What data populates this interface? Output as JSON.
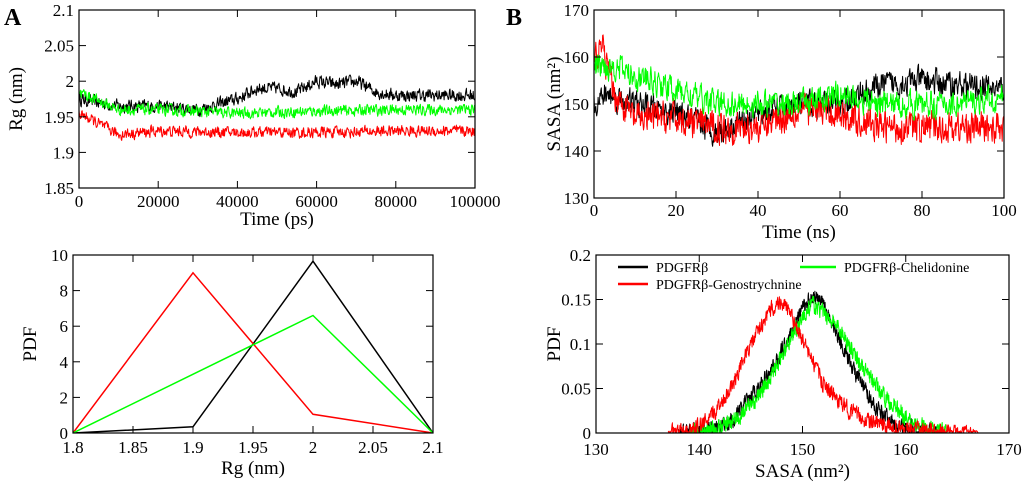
{
  "colors": {
    "PDGFRb": "#000000",
    "Genostrychnine": "#ff0000",
    "Chelidonine": "#00ff00"
  },
  "legend": {
    "entries": [
      {
        "key": "PDGFRb",
        "label": "PDGFRβ"
      },
      {
        "key": "Chelidonine",
        "label": "PDGFRβ-Chelidonine"
      },
      {
        "key": "Genostrychnine",
        "label": "PDGFRβ-Genostrychnine"
      }
    ]
  },
  "chart_data": [
    {
      "id": "A-top",
      "panel": "A",
      "type": "line",
      "xlabel": "Time (ps)",
      "ylabel": "Rg (nm)",
      "xlim": [
        0,
        100000
      ],
      "ylim": [
        1.85,
        2.1
      ],
      "xticks": [
        0,
        20000,
        40000,
        60000,
        80000,
        100000
      ],
      "yticks": [
        1.85,
        1.9,
        1.95,
        2,
        2.05,
        2.1
      ],
      "ytick_labels": [
        "1.85",
        "1.9",
        "1.95",
        "2",
        "2.05",
        "2.1"
      ],
      "series": [
        {
          "key": "PDGFRb",
          "name": "PDGFRβ",
          "x": [
            0,
            10000,
            20000,
            30000,
            40000,
            45000,
            50000,
            55000,
            60000,
            65000,
            70000,
            75000,
            80000,
            90000,
            100000
          ],
          "y": [
            1.975,
            1.965,
            1.965,
            1.96,
            1.975,
            1.99,
            1.99,
            1.985,
            2.0,
            1.995,
            2.0,
            1.985,
            1.98,
            1.98,
            1.98
          ],
          "noise": 0.008
        },
        {
          "key": "Genostrychnine",
          "name": "PDGFRβ-Genostrychnine",
          "x": [
            0,
            10000,
            20000,
            40000,
            60000,
            80000,
            100000
          ],
          "y": [
            1.955,
            1.925,
            1.93,
            1.928,
            1.928,
            1.93,
            1.93
          ],
          "noise": 0.007
        },
        {
          "key": "Chelidonine",
          "name": "PDGFRβ-Chelidonine",
          "x": [
            0,
            10000,
            20000,
            40000,
            60000,
            80000,
            100000
          ],
          "y": [
            1.985,
            1.96,
            1.96,
            1.955,
            1.958,
            1.96,
            1.96
          ],
          "noise": 0.007
        }
      ]
    },
    {
      "id": "A-bottom",
      "panel": "A",
      "type": "line",
      "xlabel": "Rg (nm)",
      "ylabel": "PDF",
      "xlim": [
        1.8,
        2.1
      ],
      "ylim": [
        0,
        10
      ],
      "xticks": [
        1.8,
        1.85,
        1.9,
        1.95,
        2,
        2.05,
        2.1
      ],
      "xtick_labels": [
        "1.8",
        "1.85",
        "1.9",
        "1.95",
        "2",
        "2.05",
        "2.1"
      ],
      "yticks": [
        0,
        2,
        4,
        6,
        8,
        10
      ],
      "series": [
        {
          "key": "PDGFRb",
          "name": "PDGFRβ",
          "x": [
            1.8,
            1.9,
            2.0,
            2.1
          ],
          "y": [
            0,
            0.35,
            9.65,
            0
          ]
        },
        {
          "key": "Genostrychnine",
          "name": "PDGFRβ-Genostrychnine",
          "x": [
            1.8,
            1.9,
            2.0,
            2.1
          ],
          "y": [
            0,
            9.0,
            1.05,
            0
          ]
        },
        {
          "key": "Chelidonine",
          "name": "PDGFRβ-Chelidonine",
          "x": [
            1.8,
            2.0,
            2.1
          ],
          "y": [
            0,
            6.6,
            0
          ]
        }
      ]
    },
    {
      "id": "B-top",
      "panel": "B",
      "type": "line",
      "xlabel": "Time (ns)",
      "ylabel": "SASA (nm²)",
      "xlim": [
        0,
        100
      ],
      "ylim": [
        130,
        170
      ],
      "xticks": [
        0,
        20,
        40,
        60,
        80,
        100
      ],
      "yticks": [
        130,
        140,
        150,
        160,
        170
      ],
      "series": [
        {
          "key": "PDGFRb",
          "name": "PDGFRβ",
          "x": [
            0,
            3,
            10,
            20,
            30,
            40,
            50,
            60,
            70,
            80,
            90,
            100
          ],
          "y": [
            150,
            152,
            150,
            148,
            144,
            148,
            150,
            150,
            154,
            155,
            154,
            153
          ],
          "noise": 2.5
        },
        {
          "key": "Genostrychnine",
          "name": "PDGFRβ-Genostrychnine",
          "x": [
            0,
            2,
            5,
            10,
            20,
            30,
            40,
            50,
            60,
            70,
            80,
            90,
            100
          ],
          "y": [
            160,
            162,
            152,
            147,
            147,
            145,
            145,
            149,
            148,
            145,
            145,
            145,
            145
          ],
          "noise": 3.0
        },
        {
          "key": "Chelidonine",
          "name": "PDGFRβ-Chelidonine",
          "x": [
            0,
            5,
            10,
            20,
            30,
            40,
            50,
            60,
            70,
            80,
            90,
            100
          ],
          "y": [
            158,
            158,
            156,
            153,
            150,
            150,
            150,
            152,
            150,
            150,
            150,
            151
          ],
          "noise": 2.5
        }
      ]
    },
    {
      "id": "B-bottom",
      "panel": "B",
      "type": "line",
      "xlabel": "SASA (nm²)",
      "ylabel": "PDF",
      "xlim": [
        130,
        170
      ],
      "ylim": [
        0,
        0.2
      ],
      "xticks": [
        130,
        140,
        150,
        160,
        170
      ],
      "yticks": [
        0,
        0.05,
        0.1,
        0.15,
        0.2
      ],
      "ytick_labels": [
        "0",
        "0.05",
        "0.1",
        "0.15",
        "0.2"
      ],
      "series": [
        {
          "key": "PDGFRb",
          "name": "PDGFRβ",
          "x": [
            138,
            141,
            143,
            145,
            147,
            149,
            150,
            151,
            152,
            153,
            155,
            157,
            159,
            161,
            163
          ],
          "y": [
            0,
            0.003,
            0.012,
            0.04,
            0.07,
            0.115,
            0.14,
            0.155,
            0.145,
            0.12,
            0.07,
            0.03,
            0.01,
            0.003,
            0
          ],
          "noise": 0.008
        },
        {
          "key": "Genostrychnine",
          "name": "PDGFRβ-Genostrychnine",
          "x": [
            137,
            139,
            141,
            143,
            145,
            146,
            147,
            148,
            149,
            150,
            151,
            152,
            154,
            156,
            158,
            160,
            163,
            167
          ],
          "y": [
            0,
            0.003,
            0.015,
            0.05,
            0.1,
            0.12,
            0.14,
            0.148,
            0.13,
            0.105,
            0.08,
            0.055,
            0.03,
            0.015,
            0.008,
            0.004,
            0.002,
            0
          ],
          "noise": 0.008
        },
        {
          "key": "Chelidonine",
          "name": "PDGFRβ-Chelidonine",
          "x": [
            139,
            142,
            144,
            146,
            148,
            149,
            150,
            151,
            152,
            153,
            154,
            156,
            158,
            160,
            162,
            164
          ],
          "y": [
            0,
            0.006,
            0.02,
            0.045,
            0.085,
            0.11,
            0.13,
            0.145,
            0.135,
            0.125,
            0.11,
            0.07,
            0.04,
            0.018,
            0.006,
            0
          ],
          "noise": 0.008
        }
      ]
    }
  ],
  "panels": {
    "A": "A",
    "B": "B"
  }
}
